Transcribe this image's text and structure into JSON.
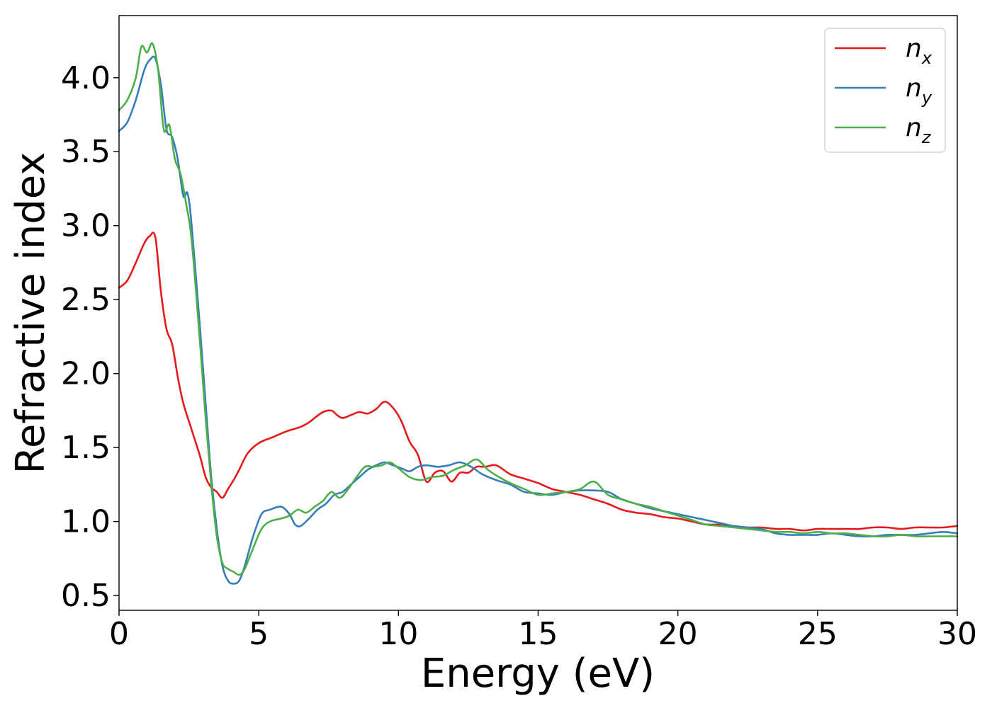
{
  "chart_data": {
    "type": "line",
    "xlabel": "Energy (eV)",
    "ylabel": "Refractive index",
    "xlim": [
      0,
      30
    ],
    "ylim": [
      0.4,
      4.42
    ],
    "xticks": [
      "0",
      "5",
      "10",
      "15",
      "20",
      "25",
      "30"
    ],
    "yticks": [
      "0.5",
      "1.0",
      "1.5",
      "2.0",
      "2.5",
      "3.0",
      "3.5",
      "4.0"
    ],
    "grid": false,
    "legend_position": "top-right",
    "series": [
      {
        "name": "n_x",
        "label_base": "n",
        "label_sub": "x",
        "color": "#e41a1c",
        "x": [
          0,
          0.3,
          0.6,
          0.9,
          1.1,
          1.3,
          1.5,
          1.7,
          1.9,
          2.1,
          2.3,
          2.6,
          2.9,
          3.1,
          3.3,
          3.5,
          3.7,
          3.9,
          4.1,
          4.3,
          4.6,
          5.0,
          5.5,
          6.0,
          6.5,
          6.8,
          7.0,
          7.3,
          7.6,
          7.8,
          8.0,
          8.3,
          8.6,
          8.9,
          9.2,
          9.5,
          9.8,
          10.1,
          10.4,
          10.7,
          11.0,
          11.3,
          11.6,
          11.9,
          12.2,
          12.5,
          12.8,
          13.1,
          13.5,
          14.0,
          14.5,
          15.0,
          15.5,
          16.0,
          16.5,
          17.0,
          17.5,
          18.0,
          18.5,
          19.0,
          19.5,
          20.0,
          20.5,
          21.0,
          21.5,
          22.0,
          22.5,
          23.0,
          23.5,
          24.0,
          24.5,
          25.0,
          25.5,
          26.0,
          26.5,
          27.0,
          27.5,
          28.0,
          28.5,
          29.0,
          29.5,
          30.0
        ],
        "y": [
          2.58,
          2.63,
          2.75,
          2.88,
          2.93,
          2.92,
          2.55,
          2.3,
          2.2,
          1.98,
          1.8,
          1.62,
          1.44,
          1.3,
          1.23,
          1.2,
          1.16,
          1.22,
          1.28,
          1.35,
          1.46,
          1.53,
          1.57,
          1.61,
          1.64,
          1.67,
          1.7,
          1.74,
          1.75,
          1.72,
          1.7,
          1.72,
          1.74,
          1.73,
          1.76,
          1.81,
          1.77,
          1.68,
          1.54,
          1.45,
          1.27,
          1.33,
          1.34,
          1.27,
          1.33,
          1.33,
          1.37,
          1.37,
          1.38,
          1.32,
          1.29,
          1.26,
          1.22,
          1.2,
          1.18,
          1.15,
          1.12,
          1.08,
          1.06,
          1.05,
          1.03,
          1.02,
          1.0,
          0.98,
          0.98,
          0.97,
          0.96,
          0.96,
          0.95,
          0.95,
          0.94,
          0.95,
          0.95,
          0.95,
          0.95,
          0.96,
          0.96,
          0.95,
          0.96,
          0.96,
          0.96,
          0.97
        ]
      },
      {
        "name": "n_y",
        "label_base": "n",
        "label_sub": "y",
        "color": "#377eb8",
        "x": [
          0,
          0.3,
          0.6,
          0.9,
          1.1,
          1.3,
          1.5,
          1.7,
          1.9,
          2.1,
          2.3,
          2.45,
          2.6,
          2.9,
          3.1,
          3.3,
          3.5,
          3.7,
          3.9,
          4.1,
          4.3,
          4.5,
          4.8,
          5.1,
          5.4,
          5.8,
          6.1,
          6.3,
          6.5,
          6.8,
          7.1,
          7.4,
          7.7,
          8.0,
          8.3,
          8.6,
          8.9,
          9.2,
          9.5,
          9.8,
          10.1,
          10.4,
          10.7,
          11.0,
          11.4,
          11.8,
          12.2,
          12.6,
          13.0,
          13.5,
          14.0,
          14.5,
          15.0,
          15.5,
          16.0,
          16.5,
          17.0,
          17.5,
          18.0,
          18.5,
          19.0,
          19.5,
          20.0,
          20.5,
          21.0,
          21.5,
          22.0,
          22.5,
          23.0,
          23.5,
          24.0,
          24.5,
          25.0,
          25.5,
          26.0,
          26.5,
          27.0,
          27.5,
          28.0,
          28.5,
          29.0,
          29.5,
          30.0
        ],
        "y": [
          3.64,
          3.7,
          3.85,
          4.05,
          4.12,
          4.13,
          3.95,
          3.65,
          3.6,
          3.45,
          3.2,
          3.22,
          3.0,
          2.3,
          1.8,
          1.3,
          0.95,
          0.7,
          0.6,
          0.58,
          0.6,
          0.7,
          0.9,
          1.05,
          1.08,
          1.1,
          1.05,
          0.98,
          0.97,
          1.02,
          1.08,
          1.12,
          1.18,
          1.2,
          1.25,
          1.3,
          1.35,
          1.38,
          1.4,
          1.38,
          1.36,
          1.34,
          1.37,
          1.38,
          1.37,
          1.38,
          1.4,
          1.37,
          1.32,
          1.28,
          1.25,
          1.2,
          1.19,
          1.18,
          1.2,
          1.21,
          1.21,
          1.2,
          1.15,
          1.12,
          1.09,
          1.07,
          1.05,
          1.03,
          1.01,
          0.99,
          0.97,
          0.96,
          0.95,
          0.92,
          0.91,
          0.91,
          0.91,
          0.92,
          0.91,
          0.9,
          0.9,
          0.91,
          0.91,
          0.91,
          0.92,
          0.93,
          0.92
        ]
      },
      {
        "name": "n_z",
        "label_base": "n",
        "label_sub": "z",
        "color": "#4daf4a",
        "x": [
          0,
          0.3,
          0.6,
          0.8,
          1.0,
          1.2,
          1.4,
          1.6,
          1.8,
          2.0,
          2.2,
          2.4,
          2.6,
          2.9,
          3.1,
          3.3,
          3.5,
          3.7,
          3.9,
          4.1,
          4.3,
          4.5,
          4.8,
          5.1,
          5.4,
          5.8,
          6.1,
          6.4,
          6.7,
          7.0,
          7.3,
          7.6,
          7.9,
          8.2,
          8.5,
          8.8,
          9.1,
          9.4,
          9.7,
          10.0,
          10.4,
          10.8,
          11.2,
          11.6,
          12.0,
          12.4,
          12.8,
          13.2,
          13.6,
          14.0,
          14.5,
          15.0,
          15.5,
          16.0,
          16.5,
          17.0,
          17.5,
          18.0,
          18.5,
          19.0,
          19.5,
          20.0,
          20.5,
          21.0,
          21.5,
          22.0,
          22.5,
          23.0,
          23.5,
          24.0,
          24.5,
          25.0,
          25.5,
          26.0,
          26.5,
          27.0,
          27.5,
          28.0,
          28.5,
          29.0,
          29.5,
          30.0
        ],
        "y": [
          3.78,
          3.85,
          4.0,
          4.21,
          4.17,
          4.23,
          4.05,
          3.65,
          3.68,
          3.45,
          3.35,
          3.15,
          2.9,
          2.2,
          1.7,
          1.25,
          0.9,
          0.72,
          0.68,
          0.66,
          0.64,
          0.68,
          0.82,
          0.95,
          1.0,
          1.02,
          1.04,
          1.08,
          1.06,
          1.1,
          1.14,
          1.2,
          1.16,
          1.22,
          1.3,
          1.37,
          1.37,
          1.38,
          1.4,
          1.36,
          1.3,
          1.28,
          1.3,
          1.31,
          1.35,
          1.38,
          1.42,
          1.35,
          1.3,
          1.26,
          1.22,
          1.18,
          1.19,
          1.2,
          1.22,
          1.27,
          1.18,
          1.15,
          1.12,
          1.1,
          1.07,
          1.04,
          1.01,
          0.98,
          0.97,
          0.96,
          0.95,
          0.94,
          0.93,
          0.93,
          0.92,
          0.93,
          0.92,
          0.92,
          0.91,
          0.9,
          0.9,
          0.91,
          0.9,
          0.9,
          0.9,
          0.9
        ]
      }
    ]
  }
}
